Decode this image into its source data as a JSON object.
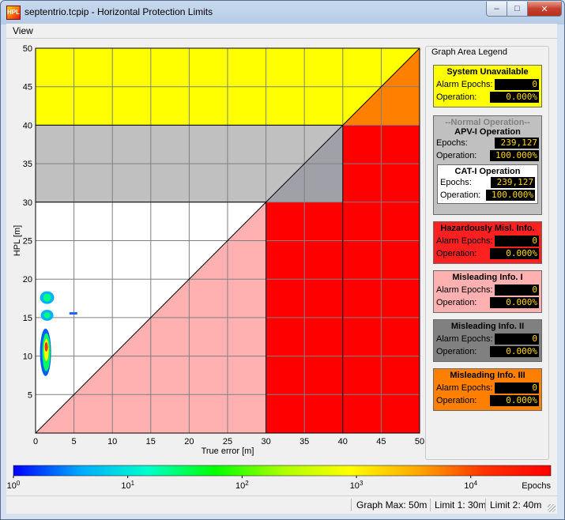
{
  "window": {
    "title": "septentrio.tcpip - Horizontal Protection Limits",
    "icon_text": "HPL",
    "min_glyph": "–",
    "max_glyph": "□",
    "close_glyph": "✕"
  },
  "menu": {
    "view": "View"
  },
  "plot": {
    "xlabel": "True error [m]",
    "ylabel": "HPL [m]",
    "x_ticks": [
      "0",
      "5",
      "10",
      "15",
      "20",
      "25",
      "30",
      "35",
      "40",
      "45",
      "50"
    ],
    "y_ticks": [
      "5",
      "10",
      "15",
      "20",
      "25",
      "30",
      "35",
      "40",
      "45",
      "50"
    ],
    "range": [
      0,
      50
    ],
    "grid_step": 5,
    "colors": {
      "unavailable": "#ffff00",
      "unavailable_tri": "#ff8000",
      "normal": "#c0c0c0",
      "normal_tri": "#a0a0a8",
      "hmi": "#ff0000",
      "mi1": "#ffb0b0",
      "mi2": "#a0a0a8",
      "grid": "#808080"
    }
  },
  "colorbar": {
    "unit": "Epochs",
    "tick_labels": [
      {
        "base": "10",
        "exp": "0"
      },
      {
        "base": "10",
        "exp": "1"
      },
      {
        "base": "10",
        "exp": "2"
      },
      {
        "base": "10",
        "exp": "3"
      },
      {
        "base": "10",
        "exp": "4"
      }
    ],
    "stops": [
      "#0000ff",
      "#00aaff",
      "#00ffcc",
      "#00ff00",
      "#aaff00",
      "#ffff00",
      "#ffaa00",
      "#ff3300",
      "#ff0000"
    ]
  },
  "legend": {
    "title": "Graph Area Legend",
    "system_unavailable": {
      "title": "System Unavailable",
      "alarm_label": "Alarm Epochs:",
      "alarm": "0",
      "op_label": "Operation:",
      "op": "0.000%",
      "color": "#ffff00"
    },
    "normal_operation": {
      "title": "--Normal Operation--",
      "color": "#c0c0c0",
      "apv": {
        "title": "APV-I Operation",
        "epochs_label": "Epochs:",
        "epochs": "239,127",
        "op_label": "Operation:",
        "op": "100.000%"
      },
      "cat": {
        "title": "CAT-I Operation",
        "epochs_label": "Epochs:",
        "epochs": "239,127",
        "op_label": "Operation:",
        "op": "100.000%"
      }
    },
    "hmi": {
      "title": "Hazardously Misl. Info.",
      "alarm_label": "Alarm Epochs:",
      "alarm": "0",
      "op_label": "Operation:",
      "op": "0.000%",
      "color": "#ff2020"
    },
    "mi1": {
      "title": "Misleading Info. I",
      "alarm_label": "Alarm Epochs:",
      "alarm": "0",
      "op_label": "Operation:",
      "op": "0.000%",
      "color": "#ffb0b0"
    },
    "mi2": {
      "title": "Misleading Info. II",
      "alarm_label": "Alarm Epochs:",
      "alarm": "0",
      "op_label": "Operation:",
      "op": "0.000%",
      "color": "#808080"
    },
    "mi3": {
      "title": "Misleading Info. III",
      "alarm_label": "Alarm Epochs:",
      "alarm": "0",
      "op_label": "Operation:",
      "op": "0.000%",
      "color": "#ff8000"
    }
  },
  "status": {
    "graph_max": "Graph Max: 50m",
    "limit1": "Limit 1: 30m",
    "limit2": "Limit 2: 40m"
  }
}
